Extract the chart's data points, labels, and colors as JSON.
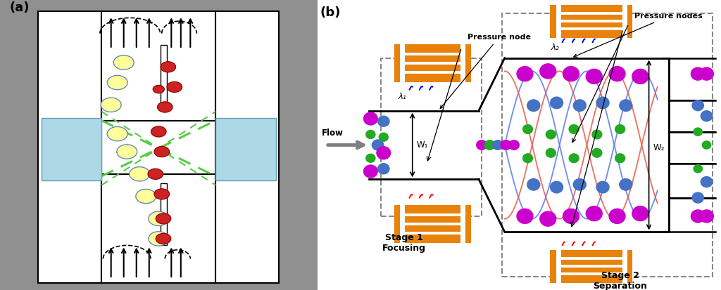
{
  "bg_color": "#909090",
  "orange_color": "#E8820A",
  "blue_particle": "#4472C4",
  "magenta_particle": "#CC00CC",
  "green_particle": "#22AA22",
  "red_particle": "#CC2222",
  "yellow_particle": "#FFFF99",
  "light_blue_rect": "#ADD8E6",
  "dashed_green": "#55CC44",
  "label_a": "(a)",
  "label_b": "(b)",
  "stage1_label": "Stage 1\nFocusing",
  "stage2_label": "Stage 2\nSeparation",
  "pressure_node": "Pressure node",
  "pressure_nodes": "Pressure nodes",
  "flow_label": "Flow",
  "w1_label": "W₁",
  "w2_label": "W₂",
  "lambda1_label": "λ₁",
  "lambda2_label": "λ₂"
}
